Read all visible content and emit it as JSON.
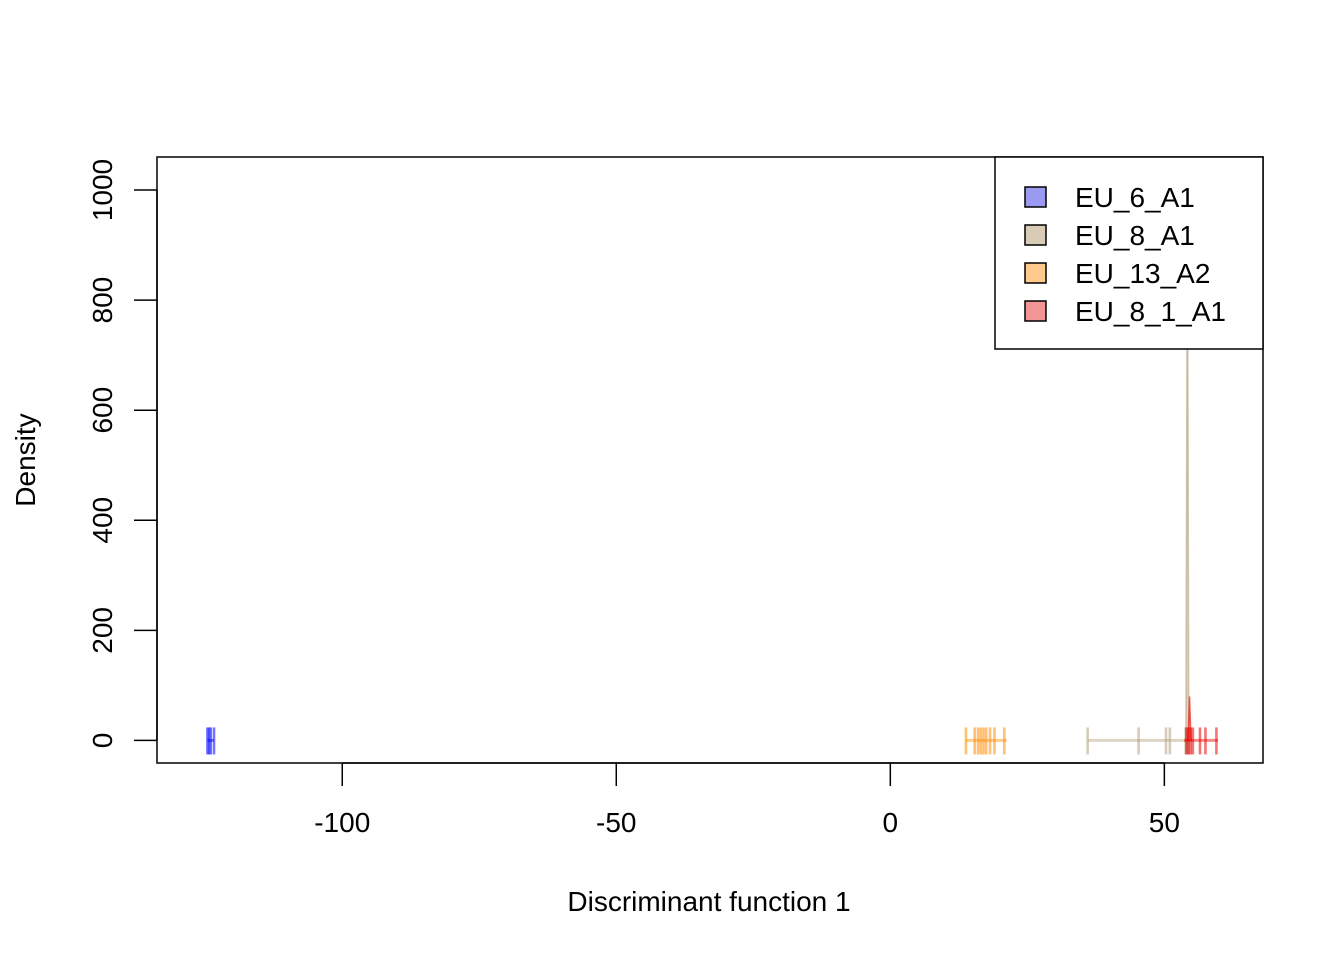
{
  "chart_data": {
    "type": "density",
    "title": "",
    "xlabel": "Discriminant function 1",
    "ylabel": "Density",
    "xlim": [
      -133.8,
      68
    ],
    "ylim": [
      -41,
      1060
    ],
    "x_ticks": [
      -100,
      -50,
      0,
      50
    ],
    "x_tick_labels": [
      "-100",
      "-50",
      "0",
      "50"
    ],
    "y_ticks": [
      0,
      200,
      400,
      600,
      800,
      1000
    ],
    "y_tick_labels": [
      "0",
      "200",
      "400",
      "600",
      "800",
      "1000"
    ],
    "grid": false,
    "legend_position": "top-right",
    "series": [
      {
        "name": "EU_6_A1",
        "fill": "#9a9af0",
        "stroke": "#0000ff",
        "rug": [
          -124.6,
          -124.0,
          -123.4,
          -124.3
        ],
        "range": [
          -124.6,
          -123.4
        ],
        "peak_x": -124.0,
        "peak_y": 0
      },
      {
        "name": "EU_8_A1",
        "fill": "#d9ccb6",
        "stroke": "#b5a27f",
        "rug": [
          36.0,
          45.3,
          50.3,
          51.0,
          53.9,
          54.2,
          54.4
        ],
        "range": [
          36.0,
          54.6
        ],
        "peak_x": 54.2,
        "peak_y": 1020
      },
      {
        "name": "EU_13_A2",
        "fill": "#ffc98c",
        "stroke": "#ff8c00",
        "rug": [
          13.8,
          15.4,
          16.0,
          16.5,
          17.0,
          17.5,
          18.2,
          19.0,
          20.8
        ],
        "range": [
          13.8,
          21.2
        ],
        "peak_x": 17.2,
        "peak_y": 0
      },
      {
        "name": "EU_8_1_A1",
        "fill": "#f29595",
        "stroke": "#ee0000",
        "rug": [
          54.0,
          54.4,
          54.8,
          55.2,
          56.5,
          57.5,
          59.5
        ],
        "range": [
          53.6,
          59.8
        ],
        "peak_x": 54.6,
        "peak_y": 80
      }
    ]
  }
}
